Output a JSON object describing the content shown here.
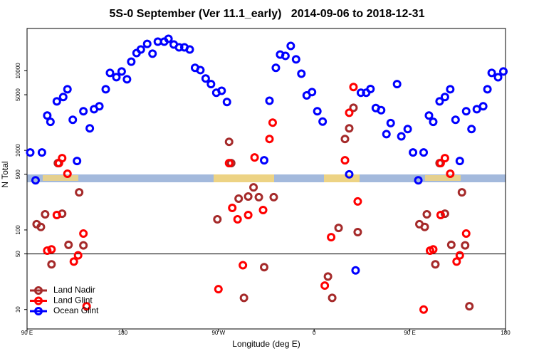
{
  "chart_data": {
    "type": "scatter",
    "title": "5S-0 September (Ver 11.1_early)   2014-09-06 to 2018-12-31",
    "xlabel": "Longitude (deg E)",
    "ylabel": "N Total",
    "xlim": [
      90,
      540
    ],
    "xticks": [
      {
        "value": 90,
        "label": "90 E"
      },
      180,
      {
        "value": 270,
        "label": "90 W"
      },
      {
        "value": 360,
        "label": "0"
      },
      {
        "value": 450,
        "label": "90 E"
      },
      {
        "value": 540,
        "label": "180"
      }
    ],
    "ylim": [
      5.7,
      34000
    ],
    "yscale": "log",
    "yticks": [
      10,
      50,
      100,
      500,
      1000,
      5000,
      10000
    ],
    "hline": 50,
    "legend": "lower left",
    "series": [
      {
        "name": "Land Nadir",
        "color": "#a52a2a",
        "x": [
          99,
          103,
          107,
          123,
          113,
          119,
          129,
          139,
          143,
          269,
          280,
          282,
          289,
          298,
          303,
          308,
          322,
          294,
          313,
          373,
          377,
          383,
          389,
          393,
          397,
          401,
          459,
          464,
          466,
          483,
          474,
          478,
          489,
          499,
          502,
          506
        ],
        "values": [
          118,
          109,
          157,
          160,
          37,
          691,
          65,
          297,
          64,
          136,
          1280,
          691,
          247,
          263,
          343,
          258,
          258,
          14,
          34,
          26,
          14,
          106,
          1390,
          1890,
          3430,
          94,
          118,
          109,
          157,
          160,
          37,
          691,
          65,
          297,
          64,
          11
        ]
      },
      {
        "name": "Land Glint",
        "color": "#ff0000",
        "x": [
          123,
          120,
          128,
          118,
          109,
          113,
          134,
          138,
          143,
          146,
          270,
          280,
          283,
          288,
          293,
          298,
          304,
          312,
          318,
          321,
          370,
          376,
          389,
          393,
          397,
          401,
          463,
          469,
          472,
          479,
          483,
          479,
          488,
          494,
          497,
          503
        ],
        "values": [
          798,
          691,
          508,
          154,
          55,
          57,
          40,
          48,
          90,
          11,
          18,
          691,
          189,
          136,
          36,
          154,
          814,
          178,
          1390,
          2230,
          20,
          81,
          750,
          2970,
          6240,
          228,
          10,
          55,
          57,
          154,
          798,
          691,
          508,
          40,
          48,
          90
        ]
      },
      {
        "name": "Ocean Glint",
        "color": "#0000ff",
        "x": [
          93,
          104,
          98,
          109,
          112,
          118,
          124,
          128,
          133,
          137,
          143,
          149,
          153,
          158,
          164,
          168,
          174,
          179,
          184,
          188,
          193,
          197,
          203,
          208,
          213,
          219,
          223,
          228,
          233,
          238,
          243,
          248,
          253,
          258,
          263,
          268,
          273,
          278,
          313,
          318,
          324,
          328,
          333,
          338,
          343,
          348,
          353,
          358,
          363,
          368,
          393,
          399,
          404,
          409,
          413,
          418,
          423,
          428,
          432,
          438,
          442,
          448,
          453,
          458,
          463,
          468,
          472,
          478,
          483,
          488,
          493,
          497,
          503,
          508,
          513,
          519,
          523,
          527,
          533,
          538
        ],
        "values": [
          940,
          940,
          420,
          2740,
          2280,
          4130,
          4680,
          5860,
          2420,
          735,
          3100,
          1890,
          3290,
          3580,
          5860,
          9400,
          8310,
          9800,
          7810,
          13000,
          16700,
          18500,
          21800,
          16400,
          23200,
          23200,
          25200,
          21400,
          19700,
          19700,
          18500,
          10900,
          10200,
          8000,
          6800,
          5300,
          5600,
          4050,
          750,
          4200,
          10900,
          16000,
          15400,
          20500,
          13900,
          9200,
          4900,
          5400,
          3100,
          2300,
          500,
          31,
          5300,
          5300,
          5900,
          3400,
          3200,
          1600,
          2200,
          6800,
          1500,
          1850,
          940,
          420,
          940,
          2740,
          2280,
          4130,
          4680,
          5860,
          2420,
          735,
          3100,
          1850,
          3290,
          3580,
          5860,
          9400,
          8300,
          9800
        ]
      }
    ]
  }
}
